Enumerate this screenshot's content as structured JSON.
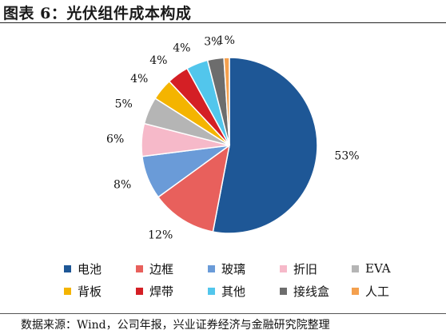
{
  "title": "图表 6：光伏组件成本构成",
  "source": "数据来源：Wind，公司年报，兴业证券经济与金融研究院整理",
  "chart_data": {
    "type": "pie",
    "slices": [
      {
        "name": "电池",
        "value": 53,
        "label": "53%",
        "color": "#1e5796"
      },
      {
        "name": "边框",
        "value": 12,
        "label": "12%",
        "color": "#e8605c"
      },
      {
        "name": "玻璃",
        "value": 8,
        "label": "8%",
        "color": "#6a9bd8"
      },
      {
        "name": "折旧",
        "value": 6,
        "label": "6%",
        "color": "#f6b9c9"
      },
      {
        "name": "EVA",
        "value": 5,
        "label": "5%",
        "color": "#b5b5b5"
      },
      {
        "name": "背板",
        "value": 4,
        "label": "4%",
        "color": "#f4b400"
      },
      {
        "name": "焊带",
        "value": 4,
        "label": "4%",
        "color": "#d41f25"
      },
      {
        "name": "其他",
        "value": 4,
        "label": "4%",
        "color": "#52c6ec"
      },
      {
        "name": "接线盒",
        "value": 3,
        "label": "3%",
        "color": "#6d6d6d"
      },
      {
        "name": "人工",
        "value": 1,
        "label": "1%",
        "color": "#f4a04e"
      }
    ]
  }
}
